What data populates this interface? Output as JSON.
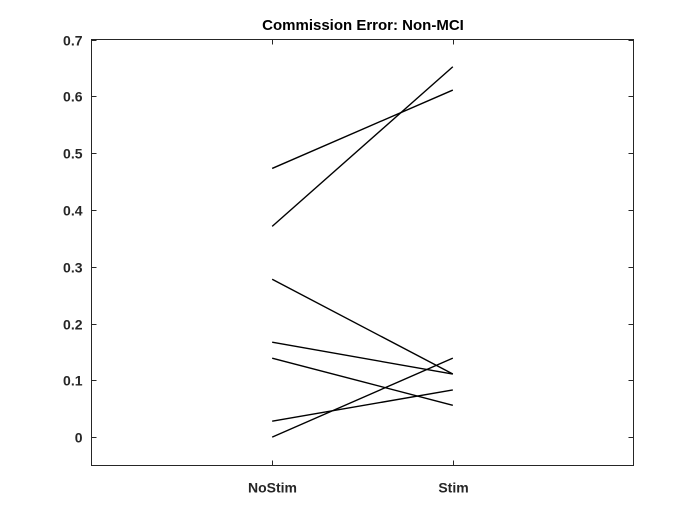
{
  "chart_data": {
    "type": "line",
    "title": "Commission Error: Non-MCI",
    "xlabel": "",
    "ylabel": "",
    "categories": [
      "NoStim",
      "Stim"
    ],
    "x_plot_range": [
      0,
      3
    ],
    "category_positions": [
      1,
      2
    ],
    "ylim": [
      -0.05,
      0.7
    ],
    "yticks": [
      0,
      0.1,
      0.2,
      0.3,
      0.4,
      0.5,
      0.6,
      0.7
    ],
    "ytick_labels": [
      "0",
      "0.1",
      "0.2",
      "0.3",
      "0.4",
      "0.5",
      "0.6",
      "0.7"
    ],
    "grid": false,
    "line_color": "#000000",
    "series": [
      {
        "values": [
          0.473,
          0.611
        ]
      },
      {
        "values": [
          0.371,
          0.652
        ]
      },
      {
        "values": [
          0.278,
          0.111
        ]
      },
      {
        "values": [
          0.167,
          0.111
        ]
      },
      {
        "values": [
          0.139,
          0.056
        ]
      },
      {
        "values": [
          0.028,
          0.083
        ]
      },
      {
        "values": [
          0.0,
          0.139
        ]
      }
    ]
  }
}
